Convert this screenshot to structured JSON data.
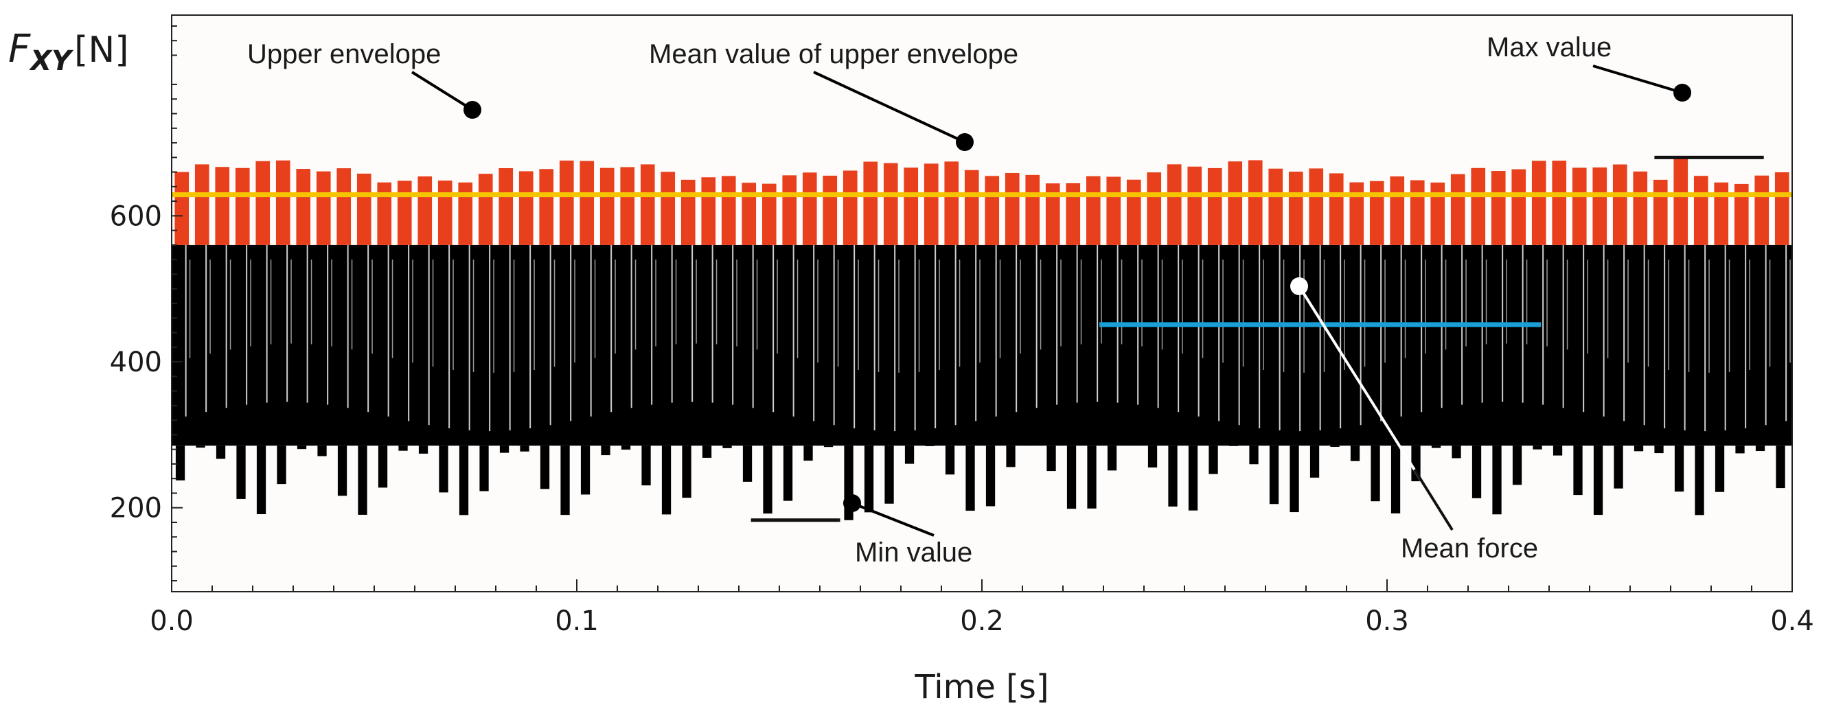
{
  "chart_data": {
    "type": "line",
    "xlabel": "Time [s]",
    "ylabel": {
      "symbol": "F",
      "subscript": "XY",
      "unit": "[N]"
    },
    "xlim": [
      0.0,
      0.4
    ],
    "ylim": [
      85,
      875
    ],
    "x_ticks": [
      "0.0",
      "0.1",
      "0.2",
      "0.3",
      "0.4"
    ],
    "y_ticks": [
      "200",
      "400",
      "600"
    ],
    "grid": false,
    "signal": {
      "name": "F_XY",
      "color": "#000000",
      "upper_envelope_color": "#e8401c",
      "n_cycles": 80,
      "max": 680,
      "min": 183,
      "upper_envelope_low": 560,
      "lower_peak_range": [
        190,
        285
      ],
      "inner_line_range": [
        305,
        560
      ]
    },
    "reference_lines": [
      {
        "name": "Mean value of upper envelope",
        "y": 629,
        "x_range": [
          0.0,
          0.4
        ],
        "color": "#f6c400"
      },
      {
        "name": "Mean force",
        "y": 451,
        "x_range": [
          0.229,
          0.338
        ],
        "color": "#1aa0d6"
      },
      {
        "name": "Max value",
        "y": 680,
        "x_range": [
          0.366,
          0.393
        ],
        "color": "#111111"
      },
      {
        "name": "Min value",
        "y": 183,
        "x_range": [
          0.143,
          0.165
        ],
        "color": "#111111"
      }
    ],
    "annotations": [
      {
        "id": "upper-envelope",
        "text": "Upper envelope"
      },
      {
        "id": "mean-upper",
        "text": "Mean value of upper envelope"
      },
      {
        "id": "max-value",
        "text": "Max value"
      },
      {
        "id": "min-value",
        "text": "Min value"
      },
      {
        "id": "mean-force",
        "text": "Mean force"
      }
    ]
  }
}
